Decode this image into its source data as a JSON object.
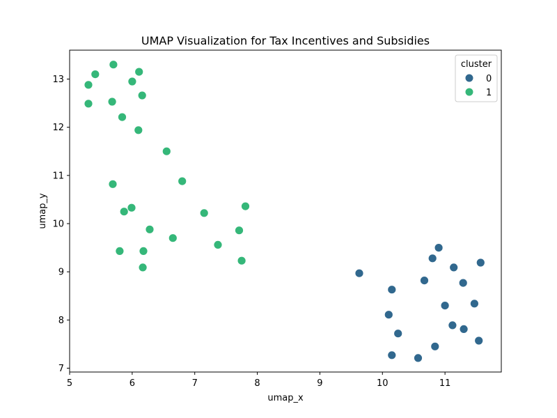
{
  "chart_data": {
    "type": "scatter",
    "title": "UMAP Visualization for Tax Incentives and Subsidies",
    "xlabel": "umap_x",
    "ylabel": "umap_y",
    "xlim": [
      5.0,
      11.9
    ],
    "ylim": [
      6.92,
      13.6
    ],
    "xticks": [
      5,
      6,
      7,
      8,
      9,
      10,
      11
    ],
    "yticks": [
      7,
      8,
      9,
      10,
      11,
      12,
      13
    ],
    "grid": false,
    "legend": {
      "title": "cluster",
      "placement": "top-right"
    },
    "series": [
      {
        "name": "0",
        "color": "#31688e",
        "points": [
          [
            9.63,
            8.97
          ],
          [
            10.15,
            8.63
          ],
          [
            10.1,
            8.11
          ],
          [
            10.25,
            7.72
          ],
          [
            10.15,
            7.27
          ],
          [
            10.57,
            7.21
          ],
          [
            10.84,
            7.45
          ],
          [
            10.67,
            8.82
          ],
          [
            10.8,
            9.28
          ],
          [
            10.9,
            9.5
          ],
          [
            11.0,
            8.3
          ],
          [
            11.12,
            7.89
          ],
          [
            11.14,
            9.09
          ],
          [
            11.29,
            8.77
          ],
          [
            11.3,
            7.81
          ],
          [
            11.47,
            8.34
          ],
          [
            11.54,
            7.57
          ],
          [
            11.57,
            9.19
          ]
        ]
      },
      {
        "name": "1",
        "color": "#35b779",
        "points": [
          [
            5.3,
            12.88
          ],
          [
            5.41,
            13.1
          ],
          [
            5.3,
            12.49
          ],
          [
            5.7,
            13.3
          ],
          [
            5.68,
            12.53
          ],
          [
            5.84,
            12.21
          ],
          [
            6.0,
            12.95
          ],
          [
            6.11,
            13.15
          ],
          [
            6.16,
            12.66
          ],
          [
            6.1,
            11.94
          ],
          [
            6.55,
            11.5
          ],
          [
            6.8,
            10.88
          ],
          [
            5.69,
            10.82
          ],
          [
            5.87,
            10.25
          ],
          [
            5.99,
            10.33
          ],
          [
            6.28,
            9.88
          ],
          [
            5.8,
            9.43
          ],
          [
            6.18,
            9.43
          ],
          [
            6.17,
            9.09
          ],
          [
            6.65,
            9.7
          ],
          [
            7.15,
            10.22
          ],
          [
            7.37,
            9.56
          ],
          [
            7.71,
            9.86
          ],
          [
            7.81,
            10.36
          ],
          [
            7.75,
            9.23
          ]
        ]
      }
    ]
  }
}
